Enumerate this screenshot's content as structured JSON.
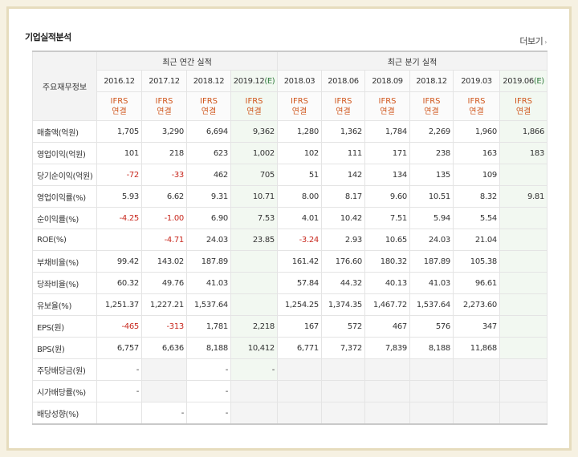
{
  "header": {
    "title": "기업실적분석",
    "more_label": "더보기",
    "more_arrow": "›"
  },
  "table": {
    "corner_label": "주요재무정보",
    "groups": [
      {
        "label": "최근 연간 실적"
      },
      {
        "label": "최근 분기 실적"
      }
    ],
    "periods": [
      "2016.12",
      "2017.12",
      "2018.12",
      "2019.12(E)",
      "2018.03",
      "2018.06",
      "2018.09",
      "2018.12",
      "2019.03",
      "2019.06(E)"
    ],
    "standard_line1": "IFRS",
    "standard_line2": "연결",
    "rows": [
      {
        "label": "매출액(억원)",
        "values": [
          "1,705",
          "3,290",
          "6,694",
          "9,362",
          "1,280",
          "1,362",
          "1,784",
          "2,269",
          "1,960",
          "1,866"
        ]
      },
      {
        "label": "영업이익(억원)",
        "values": [
          "101",
          "218",
          "623",
          "1,002",
          "102",
          "111",
          "171",
          "238",
          "163",
          "183"
        ]
      },
      {
        "label": "당기순이익(억원)",
        "values": [
          "-72",
          "-33",
          "462",
          "705",
          "51",
          "142",
          "134",
          "135",
          "109",
          ""
        ]
      },
      {
        "label": "영업이익률(%)",
        "values": [
          "5.93",
          "6.62",
          "9.31",
          "10.71",
          "8.00",
          "8.17",
          "9.60",
          "10.51",
          "8.32",
          "9.81"
        ]
      },
      {
        "label": "순이익률(%)",
        "values": [
          "-4.25",
          "-1.00",
          "6.90",
          "7.53",
          "4.01",
          "10.42",
          "7.51",
          "5.94",
          "5.54",
          ""
        ]
      },
      {
        "label": "ROE(%)",
        "values": [
          "",
          "-4.71",
          "24.03",
          "23.85",
          "-3.24",
          "2.93",
          "10.65",
          "24.03",
          "21.04",
          ""
        ]
      },
      {
        "label": "부채비율(%)",
        "values": [
          "99.42",
          "143.02",
          "187.89",
          "",
          "161.42",
          "176.60",
          "180.32",
          "187.89",
          "105.38",
          ""
        ]
      },
      {
        "label": "당좌비율(%)",
        "values": [
          "60.32",
          "49.76",
          "41.03",
          "",
          "57.84",
          "44.32",
          "40.13",
          "41.03",
          "96.61",
          ""
        ]
      },
      {
        "label": "유보율(%)",
        "values": [
          "1,251.37",
          "1,227.21",
          "1,537.64",
          "",
          "1,254.25",
          "1,374.35",
          "1,467.72",
          "1,537.64",
          "2,273.60",
          ""
        ]
      },
      {
        "label": "EPS(원)",
        "values": [
          "-465",
          "-313",
          "1,781",
          "2,218",
          "167",
          "572",
          "467",
          "576",
          "347",
          ""
        ]
      },
      {
        "label": "BPS(원)",
        "values": [
          "6,757",
          "6,636",
          "8,188",
          "10,412",
          "6,771",
          "7,372",
          "7,839",
          "8,188",
          "11,868",
          ""
        ]
      },
      {
        "label": "주당배당금(원)",
        "values": [
          "-",
          "",
          "-",
          "-",
          "",
          "",
          "",
          "",
          "",
          ""
        ]
      },
      {
        "label": "시가배당률(%)",
        "values": [
          "-",
          "",
          "-",
          "",
          "",
          "",
          "",
          "",
          "",
          ""
        ]
      },
      {
        "label": "배당성향(%)",
        "values": [
          "",
          "-",
          "-",
          "",
          "",
          "",
          "",
          "",
          "",
          ""
        ]
      }
    ]
  },
  "colors": {
    "negative": "#c8281e",
    "standard": "#d0561c",
    "estimate_bg": "#f2f8f1",
    "estimate_mark": "#2e7a3b"
  }
}
